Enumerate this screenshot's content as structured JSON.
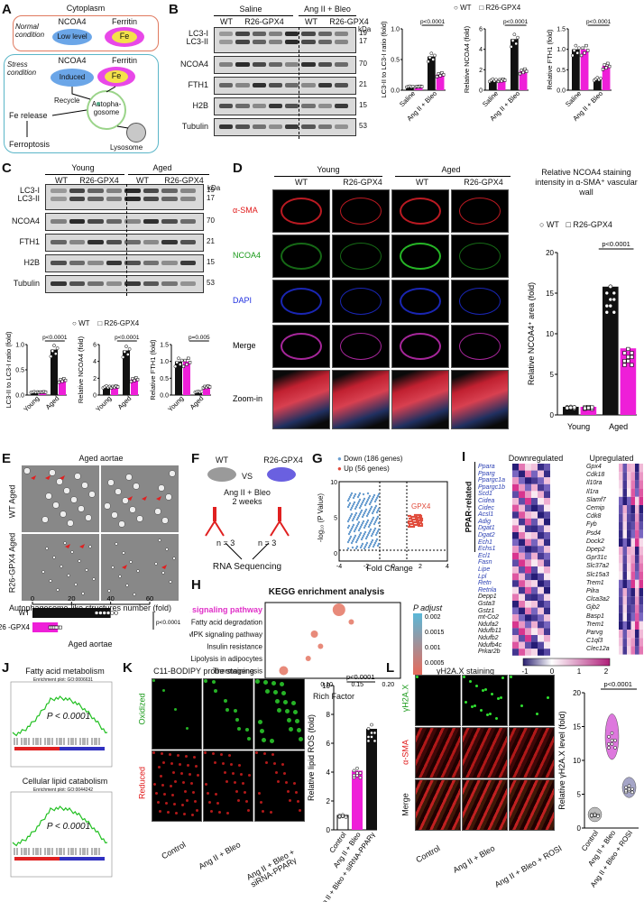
{
  "panels": {
    "A": "A",
    "B": "B",
    "C": "C",
    "D": "D",
    "E": "E",
    "F": "F",
    "G": "G",
    "H": "H",
    "I": "I",
    "J": "J",
    "K": "K",
    "L": "L"
  },
  "A": {
    "title": "Cytoplasm",
    "normal": "Normal condition",
    "stress": "Stress condition",
    "ncoa4": "NCOA4",
    "ferritin": "Ferritin",
    "low": "Low level",
    "fe": "Fe",
    "induced": "Induced",
    "recycle": "Recycle",
    "fe_release": "Fe release",
    "autophagosome": "Autopha-gosome",
    "ferroptosis": "Ferroptosis",
    "lysosome": "Lysosome"
  },
  "B": {
    "group1": "Saline",
    "group2": "Ang II + Bleo",
    "wt": "WT",
    "r26": "R26-GPX4",
    "kda": "kDa",
    "rows": [
      {
        "label": "LC3-I",
        "kda": "19"
      },
      {
        "label": "LC3-II",
        "kda": "17"
      },
      {
        "label": "NCOA4",
        "kda": "70"
      },
      {
        "label": "FTH1",
        "kda": "21"
      },
      {
        "label": "H2B",
        "kda": "15"
      },
      {
        "label": "Tubulin",
        "kda": "53"
      }
    ],
    "legend_wt": "WT",
    "legend_r26": "R26-GPX4",
    "charts": [
      {
        "ylabel": "LC3-II to LC3-I ratio (fold)",
        "ticks": [
          "0.0",
          "0.5",
          "1.0"
        ],
        "p": "p<0.0001",
        "x": [
          "Saline",
          "Ang II + Bleo"
        ],
        "values": [
          [
            0.06,
            0.06
          ],
          [
            0.55,
            0.26
          ]
        ]
      },
      {
        "ylabel": "Relative NCOA4 (fold)",
        "ticks": [
          "0",
          "2",
          "4",
          "6"
        ],
        "p": "p<0.0001",
        "x": [
          "Saline",
          "Ang II + Bleo"
        ],
        "values": [
          [
            1.0,
            1.0
          ],
          [
            5.0,
            1.9
          ]
        ]
      },
      {
        "ylabel": "Relative FTH1 (fold)",
        "ticks": [
          "0.0",
          "0.5",
          "1.0",
          "1.5"
        ],
        "p": "p<0.0001",
        "x": [
          "Saline",
          "Ang II + Bleo"
        ],
        "values": [
          [
            1.0,
            1.0
          ],
          [
            0.28,
            0.6
          ]
        ]
      }
    ]
  },
  "C": {
    "group1": "Young",
    "group2": "Aged",
    "wt": "WT",
    "r26": "R26-GPX4",
    "kda": "kDa",
    "rows": [
      {
        "label": "LC3-I",
        "kda": "19"
      },
      {
        "label": "LC3-II",
        "kda": "17"
      },
      {
        "label": "NCOA4",
        "kda": "70"
      },
      {
        "label": "FTH1",
        "kda": "21"
      },
      {
        "label": "H2B",
        "kda": "15"
      },
      {
        "label": "Tubulin",
        "kda": "53"
      }
    ],
    "legend_wt": "WT",
    "legend_r26": "R26-GPX4",
    "charts": [
      {
        "ylabel": "LC3-II to LC3-I ratio (fold)",
        "ticks": [
          "0.0",
          "0.5",
          "1.0"
        ],
        "p": "p<0.0001",
        "x": [
          "Young",
          "Aged"
        ],
        "values": [
          [
            0.06,
            0.06
          ],
          [
            0.9,
            0.3
          ]
        ]
      },
      {
        "ylabel": "Relative NCOA4 (fold)",
        "ticks": [
          "0",
          "2",
          "4",
          "6"
        ],
        "p": "p<0.0001",
        "x": [
          "Young",
          "Aged"
        ],
        "values": [
          [
            1.0,
            1.0
          ],
          [
            5.3,
            1.9
          ]
        ]
      },
      {
        "ylabel": "Relative FTH1 (fold)",
        "ticks": [
          "0.0",
          "0.5",
          "1.0",
          "1.5"
        ],
        "p": "p=0.005",
        "x": [
          "Young",
          "Aged"
        ],
        "values": [
          [
            1.0,
            1.0
          ],
          [
            0.1,
            0.25
          ]
        ]
      }
    ]
  },
  "D": {
    "young": "Young",
    "aged": "Aged",
    "wt": "WT",
    "r26": "R26-GPX4",
    "rows": [
      "α-SMA",
      "NCOA4",
      "DAPI",
      "Merge",
      "Zoom-in"
    ],
    "chart": {
      "title": "Relative NCOA4 staining intensity in α-SMA⁺ vascular wall",
      "ylabel": "Relative NCOA4⁺ area (fold)",
      "ticks": [
        "0",
        "5",
        "10",
        "15",
        "20"
      ],
      "p": "p<0.0001",
      "x": [
        "Young",
        "Aged"
      ],
      "values": [
        [
          1.0,
          1.0
        ],
        [
          15.8,
          8.2
        ]
      ],
      "legend_wt": "WT",
      "legend_r26": "R26-GPX4"
    }
  },
  "E": {
    "title": "Aged aortae",
    "wt_aged": "WT Aged",
    "r26_aged": "R26-GPX4 Aged",
    "chart_title": "Autophagosome-like structures number (fold)",
    "xticks": [
      "0",
      "20",
      "40",
      "60"
    ],
    "rows": [
      "WT",
      "R26 -GPX4"
    ],
    "values": [
      40,
      13
    ],
    "footer": "Aged aortae",
    "p": "p<0.0001"
  },
  "F": {
    "wt": "WT",
    "vs": "VS",
    "r26": "R26-GPX4",
    "treat": "Ang II + Bleo",
    "duration": "2 weeks",
    "n1": "n = 3",
    "n2": "n = 3",
    "rna": "RNA Sequencing"
  },
  "G": {
    "down": "Down (186 genes)",
    "up": "Up (56 genes)",
    "ylabel": "-log₁₀ (P Value)",
    "xlabel": "Fold Change",
    "gpx4": "GPX4",
    "xticks": [
      "-4",
      "-2",
      "0",
      "2",
      "4"
    ],
    "yticks": [
      "10",
      "5",
      "0"
    ],
    "down_color": "#6a9ed0",
    "up_color": "#e04a3a"
  },
  "H": {
    "title": "KEGG enrichment analysis",
    "pathways": [
      "PPAR signaling pathway",
      "Fatty acid degradation",
      "AMPK signaling pathway",
      "Insulin resistance",
      "Lipolysis in adipocytes",
      "Thermogenesis"
    ],
    "xlabel": "Rich Factor",
    "xticks": [
      "0.05",
      "0.10",
      "0.15",
      "0.20"
    ],
    "legend_title": "P adjust",
    "legend_ticks": [
      "0.002",
      "0.0015",
      "0.001",
      "0.0005"
    ],
    "highlight_color": "#e030c8"
  },
  "I": {
    "down": "Downregulated",
    "up": "Upregulated",
    "ppar": "PPAR-related",
    "left_genes": [
      "Ppara",
      "Pparg",
      "Ppargc1a",
      "Ppargc1b",
      "Scd1",
      "Cidea",
      "Cidec",
      "Acsl1",
      "Adig",
      "Dgat1",
      "Dgat2",
      "Ech1",
      "Echs1",
      "Ecl1",
      "Fasn",
      "Lipe",
      "Lpl",
      "Retn",
      "Retnla",
      "Depp1",
      "Gsta3",
      "Gstz1",
      "mt-Co2",
      "Ndufa2",
      "Ndufb11",
      "Ndufb2",
      "Ndufb4c",
      "Prkar2b"
    ],
    "right_genes": [
      "Gpx4",
      "Cdk18",
      "Il10ra",
      "Il1ra",
      "Slamf7",
      "Cemip",
      "Cdk8",
      "Fyb",
      "Psd4",
      "Dock2",
      "Dpep2",
      "Gpr31c",
      "Slc37a2",
      "Slc15a3",
      "Trem1",
      "Pilra",
      "Clca3a2",
      "Gjb2",
      "Basp1",
      "Trem1",
      "Parvg",
      "C1ql3",
      "Clec12a"
    ],
    "ppar_count": 19,
    "scale": [
      "-1",
      "0",
      "1",
      "2"
    ]
  },
  "J": {
    "t1": "Fatty acid metabolism",
    "t2": "Cellular lipid catabolism",
    "sub1": "Enrichment plot: GO:0006631",
    "sub2": "Enrichment plot: GO:0044242",
    "p": "P < 0.0001"
  },
  "K": {
    "title": "C11-BODIPY probe staining",
    "oxidized": "Oxidized",
    "reduced": "Reduced",
    "x": [
      "Control",
      "Ang II + Bleo",
      "Ang II + Bleo + siRNA-PPARγ"
    ],
    "ylabel": "Relative lipid ROS (fold)",
    "ticks": [
      "0",
      "2",
      "4",
      "6",
      "8",
      "10"
    ],
    "p": "p<0.0001",
    "values": [
      1.0,
      4.1,
      7.0
    ]
  },
  "L": {
    "title": "γH2A.X staining",
    "rows": [
      "γH2A.X",
      "α-SMA",
      "Merge"
    ],
    "x": [
      "Control",
      "Ang II + Bleo",
      "Ang II + Bleo + ROSI"
    ],
    "ylabel": "Relative γH2A.X level (fold)",
    "ticks": [
      "0",
      "5",
      "10",
      "15",
      "20"
    ],
    "p": "p<0.0001",
    "values": [
      2.0,
      13.5,
      6.0
    ]
  }
}
